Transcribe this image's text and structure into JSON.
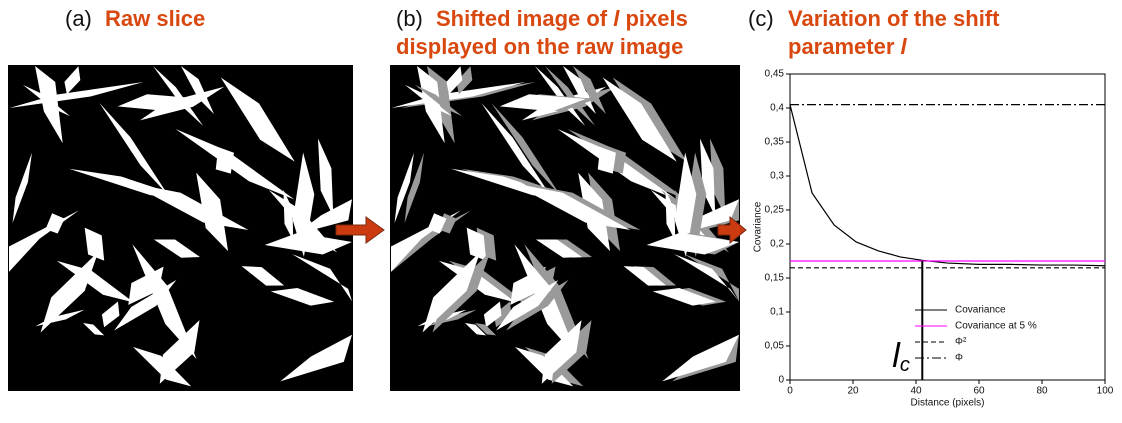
{
  "panels": [
    {
      "label": "(a)",
      "title_lines": [
        [
          "Raw slice"
        ]
      ]
    },
    {
      "label": "(b)",
      "title_lines": [
        [
          "Shifted image of ",
          "l",
          " pixels"
        ],
        [
          "displayed on the raw image"
        ]
      ]
    },
    {
      "label": "(c)",
      "title_lines": [
        [
          "Variation of the shift"
        ],
        [
          "parameter ",
          "l"
        ]
      ]
    }
  ],
  "chart_data": {
    "type": "line",
    "x_label": "Distance (pixels)",
    "y_label": "Covariance",
    "xlim": [
      0,
      100
    ],
    "xticks": [
      0,
      20,
      40,
      60,
      80,
      100
    ],
    "ylim": [
      0,
      0.45
    ],
    "yticks": [
      0,
      {
        "value": 0.05,
        "label": "0,05"
      },
      {
        "value": 0.1,
        "label": "0,1"
      },
      {
        "value": 0.15,
        "label": "0,15"
      },
      {
        "value": 0.2,
        "label": "0,2"
      },
      {
        "value": 0.25,
        "label": "0,25"
      },
      {
        "value": 0.3,
        "label": "0,3"
      },
      {
        "value": 0.35,
        "label": "0,35"
      },
      {
        "value": 0.4,
        "label": "0,4"
      },
      {
        "value": 0.45,
        "label": "0,45"
      }
    ],
    "series": [
      {
        "name": "Covariance",
        "color": "#000000",
        "dash": "solid",
        "x": [
          0,
          7,
          14,
          21,
          28,
          35,
          42,
          50,
          60,
          70,
          80,
          90,
          100
        ],
        "values": [
          0.405,
          0.275,
          0.228,
          0.203,
          0.19,
          0.181,
          0.176,
          0.172,
          0.17,
          0.17,
          0.169,
          0.169,
          0.168
        ]
      },
      {
        "name": "Covariance at 5 %",
        "color": "#ff00ff",
        "dash": "solid",
        "x": [
          0,
          100
        ],
        "values": [
          0.175,
          0.175
        ]
      },
      {
        "name": "Φ²",
        "color": "#000000",
        "dash": "dashed",
        "x": [
          0,
          100
        ],
        "values": [
          0.165,
          0.165
        ]
      },
      {
        "name": "Φ",
        "color": "#000000",
        "dash": "dashdot",
        "x": [
          0,
          100
        ],
        "values": [
          0.405,
          0.405
        ]
      }
    ],
    "annotation": {
      "text": "l",
      "sub": "c",
      "x": 42,
      "y": 0.175
    },
    "legend": "lower right"
  }
}
